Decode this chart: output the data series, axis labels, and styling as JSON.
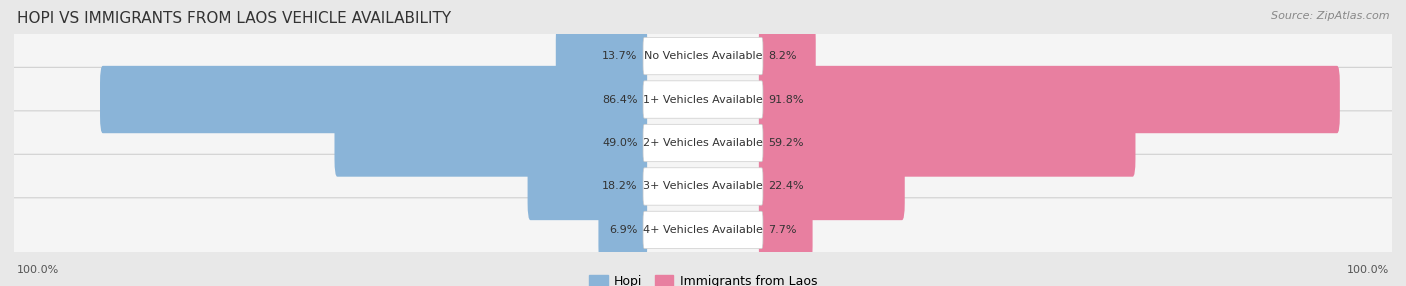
{
  "title": "HOPI VS IMMIGRANTS FROM LAOS VEHICLE AVAILABILITY",
  "source": "Source: ZipAtlas.com",
  "categories": [
    "No Vehicles Available",
    "1+ Vehicles Available",
    "2+ Vehicles Available",
    "3+ Vehicles Available",
    "4+ Vehicles Available"
  ],
  "hopi_values": [
    13.7,
    86.4,
    49.0,
    18.2,
    6.9
  ],
  "laos_values": [
    8.2,
    91.8,
    59.2,
    22.4,
    7.7
  ],
  "hopi_color": "#8ab4d8",
  "laos_color": "#e87fa0",
  "bg_color": "#e8e8e8",
  "row_bg_color": "#f5f5f5",
  "row_border_color": "#d0d0d0",
  "legend_hopi": "Hopi",
  "legend_laos": "Immigrants from Laos",
  "axis_label_left": "100.0%",
  "axis_label_right": "100.0%",
  "title_fontsize": 11,
  "source_fontsize": 8,
  "label_fontsize": 8,
  "pct_fontsize": 8
}
